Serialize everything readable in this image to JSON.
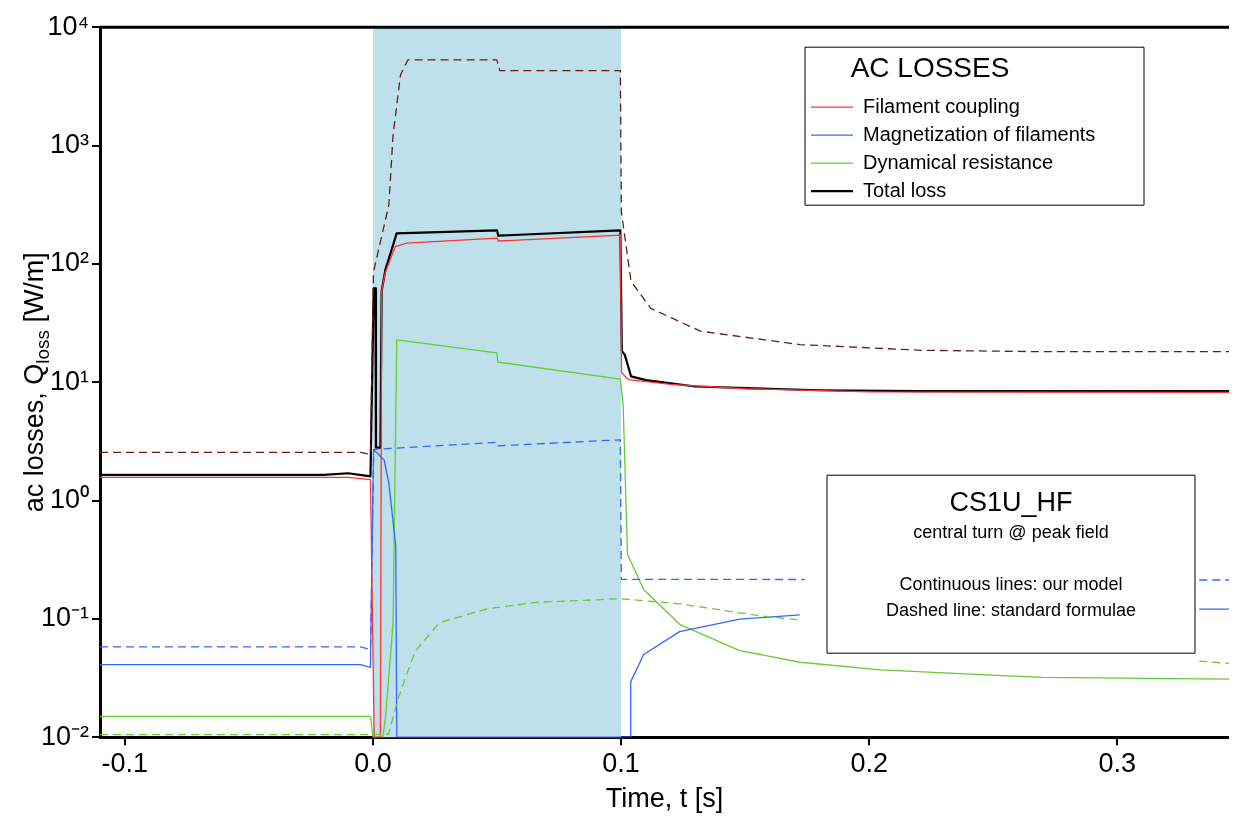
{
  "chart_data": {
    "type": "line",
    "xlabel": "Time, t [s]",
    "ylabel": "ac losses, Q$_{loss}$ [W/m]",
    "legend_title": "AC LOSSES",
    "legend": "top right",
    "grid": false,
    "marker": "none",
    "log": "y",
    "xlim": [
      -0.11,
      0.345
    ],
    "xticks": [
      -0.1,
      {
        "value": 0,
        "label": "0.0"
      },
      0.1,
      0.2,
      0.3
    ],
    "ylim": [
      0.01,
      10000
    ],
    "yticks": [
      {
        "value": 0.01,
        "label": "10⁻²"
      },
      {
        "value": 0.1,
        "label": "10⁻¹"
      },
      {
        "value": 1,
        "label": "10⁰"
      },
      {
        "value": 10,
        "label": "10¹"
      },
      {
        "value": 100,
        "label": "10²"
      },
      {
        "value": 1000,
        "label": "10³"
      },
      {
        "value": 10000,
        "label": "10⁴"
      }
    ],
    "bands": [
      {
        "axis": "x",
        "from": 0,
        "to": 0.1,
        "color": "#bde0ea"
      }
    ],
    "annotations": [
      "CS1U_HF",
      "central turn @ peak field",
      "Continuous lines: our model",
      "Dashed line: standard formulae"
    ],
    "series": [
      {
        "line_style": "dashed",
        "color": "#6b1a1a",
        "x": [
          -0.11,
          -0.005,
          -0.001,
          0.0002,
          0.0064,
          0.0081,
          0.0111,
          0.0141,
          0.0499,
          0.0511,
          0.0997,
          0.1001,
          0.104,
          0.112,
          0.132,
          0.172,
          0.221,
          0.27,
          0.345
        ],
        "values": [
          2.55,
          2.55,
          2.45,
          85,
          315,
          1230,
          3950,
          5300,
          5300,
          4300,
          4300,
          277,
          71,
          42,
          27,
          20.8,
          18.6,
          18.1,
          18.1
        ]
      },
      {
        "line_style": "dashed",
        "color": "#3366ff",
        "x": [
          -0.11,
          -0.005,
          -0.001,
          0.0003,
          0.05,
          0.0503,
          0.0997,
          0.1001,
          0.174,
          null,
          0.333,
          0.345
        ],
        "values": [
          0.058,
          0.058,
          0.055,
          2.7,
          3.1,
          2.9,
          3.26,
          0.216,
          0.215,
          null,
          0.213,
          0.213
        ]
      },
      {
        "line_style": "dashed",
        "color": "#66cc33",
        "x": [
          -0.11,
          -0.001,
          0.0063,
          0.0102,
          0.017,
          0.0268,
          0.0464,
          0.066,
          0.0997,
          0.1236,
          0.156,
          0.172,
          null,
          0.333,
          0.345
        ],
        "values": [
          0.0105,
          0.0105,
          0.0106,
          0.0216,
          0.053,
          0.093,
          0.122,
          0.138,
          0.148,
          0.134,
          0.106,
          0.098,
          null,
          0.044,
          0.042
        ]
      },
      {
        "name": "Filament coupling",
        "line_style": "solid",
        "color": "#ff3333",
        "x": [
          -0.11,
          -0.01,
          -0.001,
          0.0005,
          0.003,
          0.0035,
          0.005,
          0.009,
          0.0135,
          0.05,
          0.0505,
          0.0997,
          0.1002,
          0.103,
          0.12,
          0.15,
          0.2,
          0.345
        ],
        "values": [
          1.57,
          1.57,
          1.5,
          0.01,
          0.01,
          59,
          85,
          140,
          150,
          165,
          156,
          175,
          12,
          10.5,
          9.6,
          8.8,
          8.3,
          8.2
        ]
      },
      {
        "name": "Magnetization of filaments",
        "line_style": "solid",
        "color": "#3366ff",
        "x": [
          -0.11,
          -0.005,
          -0.001,
          0.0002,
          0.0045,
          0.0064,
          0.0092,
          0.0096,
          0.1038,
          0.1039,
          0.1091,
          0.1236,
          0.1478,
          0.172,
          null,
          0.333,
          0.345
        ],
        "values": [
          0.041,
          0.041,
          0.039,
          2.7,
          2.2,
          1.4,
          0.41,
          0.01,
          0.01,
          0.0295,
          0.05,
          0.078,
          0.0995,
          0.108,
          null,
          0.121,
          0.121
        ]
      },
      {
        "name": "Dynamical resistance",
        "line_style": "solid",
        "color": "#66cc33",
        "x": [
          -0.11,
          -0.001,
          0,
          0.004,
          0.0051,
          0.0081,
          0.0096,
          0.0499,
          0.0503,
          0.0997,
          0.1008,
          0.1026,
          0.1091,
          0.1236,
          0.1478,
          0.1721,
          0.2048,
          0.2697,
          0.345
        ],
        "values": [
          0.015,
          0.015,
          0.01,
          0.01,
          0.015,
          0.093,
          22.8,
          17.7,
          14.8,
          10.6,
          6.6,
          0.35,
          0.177,
          0.09,
          0.054,
          0.043,
          0.037,
          0.032,
          0.031
        ]
      },
      {
        "name": "Total loss",
        "line_style": "solid",
        "color": "#000000",
        "x": [
          -0.11,
          -0.02,
          -0.01,
          -0.001,
          0.0003,
          0.001,
          0.0012,
          0.003,
          0.0035,
          0.005,
          0.009,
          0.0095,
          0.05,
          0.0505,
          0.0997,
          0.1003,
          0.1015,
          0.104,
          0.11,
          0.13,
          0.18,
          0.22,
          0.345
        ],
        "values": [
          1.65,
          1.65,
          1.7,
          1.6,
          62,
          62,
          2.8,
          2.8,
          59,
          89,
          166,
          181,
          192,
          173,
          192,
          18.4,
          17,
          11.2,
          10.4,
          9.2,
          8.55,
          8.4,
          8.4
        ]
      }
    ]
  }
}
